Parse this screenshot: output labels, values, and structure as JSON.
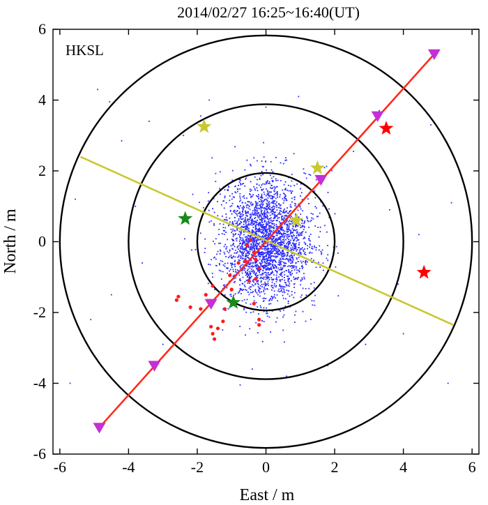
{
  "chart_data": {
    "type": "scatter",
    "title": "2014/02/27  16:25~16:40(UT)",
    "station": "HKSL",
    "xlabel": "East / m",
    "ylabel": "North / m",
    "xlim": [
      -6.2,
      6.2
    ],
    "ylim": [
      -6,
      6
    ],
    "x_ticks": [
      -6,
      -4,
      -2,
      0,
      2,
      4,
      6
    ],
    "y_ticks": [
      -6,
      -4,
      -2,
      0,
      2,
      4,
      6
    ],
    "x_tick_labels": [
      "-6",
      "-4",
      "-2",
      "0",
      "2",
      "4",
      "6"
    ],
    "y_tick_labels": [
      "-6",
      "-4",
      "-2",
      "0",
      "2",
      "4",
      "6"
    ],
    "circles": [
      {
        "center": [
          0,
          0
        ],
        "radius": 2
      },
      {
        "center": [
          0,
          0
        ],
        "radius": 4
      },
      {
        "center": [
          0,
          0
        ],
        "radius": 6
      }
    ],
    "lines": [
      {
        "name": "principal-axis",
        "color": "#ff2a1a",
        "points": [
          [
            -4.85,
            -5.25
          ],
          [
            4.9,
            5.3
          ]
        ]
      },
      {
        "name": "minor-axis",
        "color": "#c8c832",
        "points": [
          [
            -5.4,
            2.4
          ],
          [
            5.45,
            -2.35
          ]
        ]
      }
    ],
    "triangles": {
      "color": "#c42fd6",
      "points": [
        [
          -4.85,
          -5.25
        ],
        [
          -3.25,
          -3.5
        ],
        [
          -1.6,
          -1.75
        ],
        [
          1.6,
          1.75
        ],
        [
          3.25,
          3.55
        ],
        [
          4.9,
          5.3
        ]
      ]
    },
    "stars": [
      {
        "color": "#ff0000",
        "x": 3.5,
        "y": 3.2
      },
      {
        "color": "#ff0000",
        "x": 4.6,
        "y": -0.87
      },
      {
        "color": "#c8c832",
        "x": -1.8,
        "y": 3.25
      },
      {
        "color": "#c8c832",
        "x": 1.5,
        "y": 2.08
      },
      {
        "color": "#c8c832",
        "x": 0.88,
        "y": 0.6
      },
      {
        "color": "#1a8a1a",
        "x": -2.35,
        "y": 0.65
      },
      {
        "color": "#1a8a1a",
        "x": -0.95,
        "y": -1.72
      }
    ],
    "red_points": [
      [
        -0.55,
        -0.1
      ],
      [
        -0.45,
        0.05
      ],
      [
        -0.35,
        -0.3
      ],
      [
        -0.3,
        -0.5
      ],
      [
        -0.6,
        -0.55
      ],
      [
        -0.2,
        -0.75
      ],
      [
        -0.5,
        -1.1
      ],
      [
        -1.05,
        -0.95
      ],
      [
        -1.55,
        -1.25
      ],
      [
        -1.75,
        -1.5
      ],
      [
        -1.9,
        -1.9
      ],
      [
        -2.2,
        -1.85
      ],
      [
        -2.6,
        -1.65
      ],
      [
        -2.55,
        -1.55
      ],
      [
        -1.6,
        -2.4
      ],
      [
        -1.55,
        -2.6
      ],
      [
        -1.5,
        -2.75
      ],
      [
        -1.4,
        -2.45
      ],
      [
        -1.25,
        -2.25
      ],
      [
        -0.35,
        -1.75
      ],
      [
        -0.2,
        -2.2
      ],
      [
        -0.2,
        -2.35
      ],
      [
        -1.0,
        -1.35
      ],
      [
        -0.8,
        -0.6
      ],
      [
        -0.3,
        -1.05
      ],
      [
        -1.2,
        -1.9
      ]
    ],
    "blue_cloud": {
      "count": 2800,
      "center": [
        0,
        0
      ],
      "sd_x": 0.65,
      "sd_y": 0.85,
      "color": "#2a2aff"
    },
    "blue_outliers": [
      [
        -4.9,
        4.3
      ],
      [
        -4.55,
        3.95
      ],
      [
        -1.65,
        4.0
      ],
      [
        0.95,
        4.1
      ],
      [
        -5.55,
        1.2
      ],
      [
        -5.7,
        -4.0
      ],
      [
        5.3,
        -4.0
      ],
      [
        5.4,
        1.1
      ],
      [
        -4.5,
        -1.5
      ],
      [
        4.45,
        0.2
      ],
      [
        -4.2,
        2.85
      ],
      [
        4.0,
        -2.6
      ],
      [
        -3.4,
        3.4
      ],
      [
        3.3,
        3.7
      ],
      [
        -0.75,
        -4.05
      ],
      [
        0.6,
        -3.8
      ],
      [
        -3.0,
        -2.9
      ],
      [
        2.9,
        -2.9
      ],
      [
        -2.4,
        3.0
      ],
      [
        2.55,
        2.55
      ],
      [
        -3.8,
        1.0
      ],
      [
        3.85,
        -1.2
      ],
      [
        -3.6,
        -0.6
      ],
      [
        3.6,
        0.9
      ],
      [
        0.0,
        3.8
      ],
      [
        -0.4,
        -3.6
      ],
      [
        1.8,
        -3.5
      ],
      [
        -1.9,
        3.55
      ],
      [
        4.8,
        3.3
      ],
      [
        -5.1,
        -2.2
      ]
    ]
  }
}
